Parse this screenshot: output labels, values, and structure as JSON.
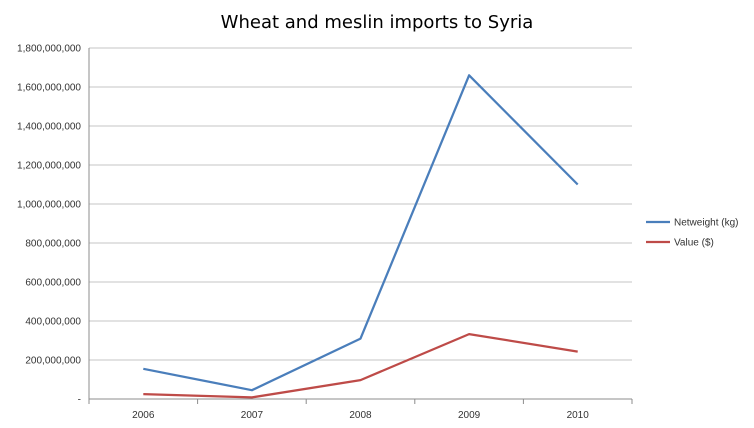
{
  "chart_data": {
    "type": "line",
    "title": "Wheat and meslin imports to Syria",
    "xlabel": "",
    "ylabel": "",
    "categories": [
      "2006",
      "2007",
      "2008",
      "2009",
      "2010"
    ],
    "ylim": [
      0,
      1800000000
    ],
    "yticks": [
      0,
      200000000,
      400000000,
      600000000,
      800000000,
      1000000000,
      1200000000,
      1400000000,
      1600000000,
      1800000000
    ],
    "ytick_labels": [
      "-",
      "200,000,000",
      "400,000,000",
      "600,000,000",
      "800,000,000",
      "1,000,000,000",
      "1,200,000,000",
      "1,400,000,000",
      "1,600,000,000",
      "1,800,000,000"
    ],
    "grid": true,
    "legend_position": "right",
    "series": [
      {
        "name": "Netweight (kg)",
        "color": "#4a7ebb",
        "values": [
          155000000,
          45000000,
          310000000,
          1660000000,
          1100000000
        ]
      },
      {
        "name": "Value ($)",
        "color": "#be4b48",
        "values": [
          25000000,
          8000000,
          97000000,
          333000000,
          243000000
        ]
      }
    ]
  }
}
